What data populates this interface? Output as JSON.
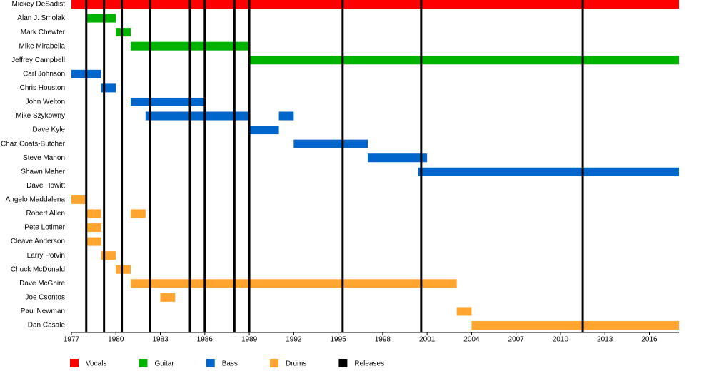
{
  "chart_data": {
    "type": "timeline",
    "categories": [
      "Mickey DeSadist",
      "Alan J. Smolak",
      "Mark Chewter",
      "Mike Mirabella",
      "Jeffrey Campbell",
      "Carl Johnson",
      "Chris Houston",
      "John Welton",
      "Mike Szykowny",
      "Dave Kyle",
      "Chaz Coats-Butcher",
      "Steve Mahon",
      "Shawn Maher",
      "Dave Howitt",
      "Angelo Maddalena",
      "Robert Allen",
      "Pete Lotimer",
      "Cleave Anderson",
      "Larry Potvin",
      "Chuck McDonald",
      "Dave McGhire",
      "Joe Csontos",
      "Paul Newman",
      "Dan Casale"
    ],
    "series": [
      {
        "name": "Vocals",
        "color": "#ff0000",
        "values": [
          [
            [
              1977,
              2018
            ]
          ],
          null,
          null,
          null,
          null,
          null,
          null,
          null,
          null,
          null,
          null,
          null,
          null,
          null,
          null,
          null,
          null,
          null,
          null,
          null,
          null,
          null,
          null,
          null
        ]
      },
      {
        "name": "Guitar",
        "color": "#00b300",
        "values": [
          null,
          [
            [
              1978,
              1980
            ]
          ],
          [
            [
              1980,
              1981
            ]
          ],
          [
            [
              1981,
              1989
            ]
          ],
          [
            [
              1989,
              2018
            ]
          ],
          null,
          null,
          null,
          null,
          null,
          null,
          null,
          null,
          null,
          null,
          null,
          null,
          null,
          null,
          null,
          null,
          null,
          null,
          null
        ]
      },
      {
        "name": "Bass",
        "color": "#0066cc",
        "values": [
          null,
          null,
          null,
          null,
          null,
          [
            [
              1977,
              1979
            ]
          ],
          [
            [
              1979,
              1980
            ]
          ],
          [
            [
              1981,
              1986
            ]
          ],
          [
            [
              1982,
              1989
            ],
            [
              1991,
              1992
            ]
          ],
          [
            [
              1989,
              1991
            ]
          ],
          [
            [
              1992,
              1997
            ]
          ],
          [
            [
              1997,
              2001
            ]
          ],
          [
            [
              2000.4,
              2018
            ]
          ],
          null,
          null,
          null,
          null,
          null,
          null,
          null,
          null,
          null,
          null,
          null
        ]
      },
      {
        "name": "Drums",
        "color": "#ffa530",
        "values": [
          null,
          null,
          null,
          null,
          null,
          null,
          null,
          null,
          null,
          null,
          null,
          null,
          null,
          null,
          [
            [
              1977,
              1978
            ]
          ],
          [
            [
              1978,
              1979
            ],
            [
              1981,
              1982
            ]
          ],
          [
            [
              1978,
              1979
            ]
          ],
          [
            [
              1978,
              1979
            ]
          ],
          [
            [
              1979,
              1980
            ]
          ],
          [
            [
              1980,
              1981
            ]
          ],
          [
            [
              1981,
              2003
            ]
          ],
          [
            [
              1983,
              1984
            ]
          ],
          [
            [
              2003,
              2004
            ]
          ],
          [
            [
              2004,
              2018
            ]
          ]
        ]
      },
      {
        "name": "Releases",
        "color": "#000000",
        "x": [
          1978,
          1979.2,
          1980.4,
          1982.3,
          1985,
          1986,
          1988,
          1989,
          1995.3,
          2000.6,
          2011.5
        ]
      }
    ],
    "xlim": [
      1977,
      2018
    ],
    "xticks": [
      1977,
      1980,
      1983,
      1986,
      1989,
      1992,
      1995,
      1998,
      2001,
      2004,
      2007,
      2010,
      2013,
      2016
    ],
    "legend": "bottom"
  }
}
